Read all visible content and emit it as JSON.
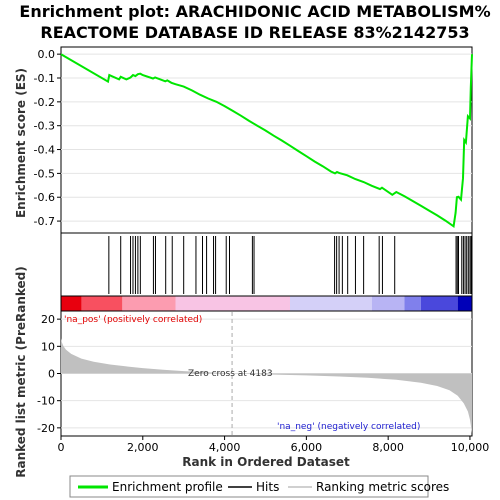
{
  "chart_data": {
    "type": "line",
    "title_lines": [
      "Enrichment plot: ARACHIDONIC ACID METABOLISM%",
      "REACTOME DATABASE ID RELEASE 83%2142753"
    ],
    "es_panel": {
      "ylabel": "Enrichment score (ES)",
      "ylim": [
        -0.75,
        0.03
      ],
      "yticks": [
        0.0,
        -0.1,
        -0.2,
        -0.3,
        -0.4,
        -0.5,
        -0.6,
        -0.7
      ],
      "ytick_labels": [
        "0.0",
        "-0.1",
        "-0.2",
        "-0.3",
        "-0.4",
        "-0.5",
        "-0.6",
        "-0.7"
      ],
      "line_color": "#00e600",
      "x": [
        0,
        1150,
        1180,
        1420,
        1460,
        1600,
        1700,
        1760,
        1820,
        1880,
        1940,
        2000,
        2250,
        2300,
        2550,
        2600,
        2700,
        2800,
        3000,
        3200,
        3400,
        3600,
        3800,
        4000,
        4200,
        4400,
        4600,
        4800,
        5000,
        5200,
        5400,
        5600,
        5800,
        6000,
        6200,
        6400,
        6600,
        6700,
        6750,
        6800,
        7000,
        7200,
        7400,
        7600,
        7800,
        7850,
        8100,
        8200,
        8400,
        8600,
        8800,
        9000,
        9200,
        9400,
        9600,
        9650,
        9680,
        9720,
        9780,
        9830,
        9860,
        9900,
        9950,
        10000,
        10020,
        10050
      ],
      "y": [
        0.0,
        -0.115,
        -0.088,
        -0.106,
        -0.095,
        -0.106,
        -0.098,
        -0.088,
        -0.092,
        -0.084,
        -0.082,
        -0.088,
        -0.102,
        -0.098,
        -0.114,
        -0.11,
        -0.12,
        -0.126,
        -0.136,
        -0.152,
        -0.17,
        -0.186,
        -0.2,
        -0.218,
        -0.238,
        -0.258,
        -0.28,
        -0.3,
        -0.32,
        -0.342,
        -0.362,
        -0.384,
        -0.406,
        -0.428,
        -0.45,
        -0.47,
        -0.492,
        -0.5,
        -0.494,
        -0.498,
        -0.508,
        -0.524,
        -0.536,
        -0.552,
        -0.566,
        -0.56,
        -0.59,
        -0.578,
        -0.596,
        -0.616,
        -0.636,
        -0.656,
        -0.676,
        -0.698,
        -0.722,
        -0.665,
        -0.6,
        -0.598,
        -0.61,
        -0.52,
        -0.36,
        -0.37,
        -0.26,
        -0.27,
        -0.14,
        0.0
      ]
    },
    "hits_panel": {
      "hit_positions": [
        1170,
        1460,
        1700,
        1760,
        1820,
        1880,
        1940,
        2260,
        2310,
        2560,
        2720,
        3000,
        3300,
        3460,
        3560,
        3730,
        3780,
        4040,
        4120,
        4680,
        4720,
        6690,
        6740,
        6800,
        6880,
        7010,
        7200,
        7400,
        7780,
        7860,
        8160,
        9660,
        9690,
        9720,
        9800,
        9840,
        9880,
        9920,
        9960,
        10000,
        10030
      ]
    },
    "heat_bar": {
      "segments": [
        {
          "from": 0,
          "to": 500,
          "color": "#e8000e"
        },
        {
          "from": 500,
          "to": 1500,
          "color": "#f85060"
        },
        {
          "from": 1500,
          "to": 2800,
          "color": "#fc9cb0"
        },
        {
          "from": 2800,
          "to": 5600,
          "color": "#f8c4e4"
        },
        {
          "from": 5600,
          "to": 7600,
          "color": "#d4d0f8"
        },
        {
          "from": 7600,
          "to": 8400,
          "color": "#b8b4f4"
        },
        {
          "from": 8400,
          "to": 8800,
          "color": "#8080ec"
        },
        {
          "from": 8800,
          "to": 9700,
          "color": "#4a48dc"
        },
        {
          "from": 9700,
          "to": 10050,
          "color": "#0000b8"
        }
      ]
    },
    "rank_panel": {
      "ylabel": "Ranked list metric (PreRanked)",
      "ylim": [
        -23,
        23
      ],
      "yticks": [
        20,
        10,
        0,
        -10,
        -20
      ],
      "ytick_labels": [
        "20",
        "10",
        "0",
        "-10",
        "-20"
      ],
      "profile_x": [
        0,
        20,
        60,
        120,
        250,
        500,
        800,
        1200,
        1600,
        2000,
        2500,
        3000,
        3500,
        4000,
        4183,
        4600,
        5200,
        6000,
        6800,
        7500,
        8200,
        8800,
        9200,
        9500,
        9700,
        9850,
        9950,
        10000,
        10030,
        10050
      ],
      "profile_y": [
        13,
        11.5,
        10,
        8.8,
        7.2,
        5.5,
        4.3,
        3.3,
        2.6,
        2.0,
        1.4,
        0.9,
        0.5,
        0.2,
        0.0,
        -0.2,
        -0.4,
        -0.7,
        -1.1,
        -1.6,
        -2.3,
        -3.4,
        -4.6,
        -6.2,
        -8.2,
        -11,
        -14,
        -17,
        -20,
        -22
      ],
      "pos_label": "'na_pos' (positively correlated)",
      "neg_label": "'na_neg' (negatively correlated)",
      "zero_cross_label": "Zero cross at 4183",
      "zero_cross": 4183
    },
    "xaxis": {
      "xlabel": "Rank in Ordered Dataset",
      "xlim": [
        0,
        10050
      ],
      "xticks": [
        0,
        2000,
        4000,
        6000,
        8000,
        10000
      ],
      "xtick_labels": [
        "0",
        "2,000",
        "4,000",
        "6,000",
        "8,000",
        "10,000"
      ]
    },
    "legend": {
      "placement": "bottom",
      "items": [
        {
          "label": "Enrichment profile",
          "color": "#00e600"
        },
        {
          "label": "Hits",
          "color": "#000000"
        },
        {
          "label": "Ranking metric scores",
          "color": "#c0c0c0"
        }
      ]
    }
  }
}
